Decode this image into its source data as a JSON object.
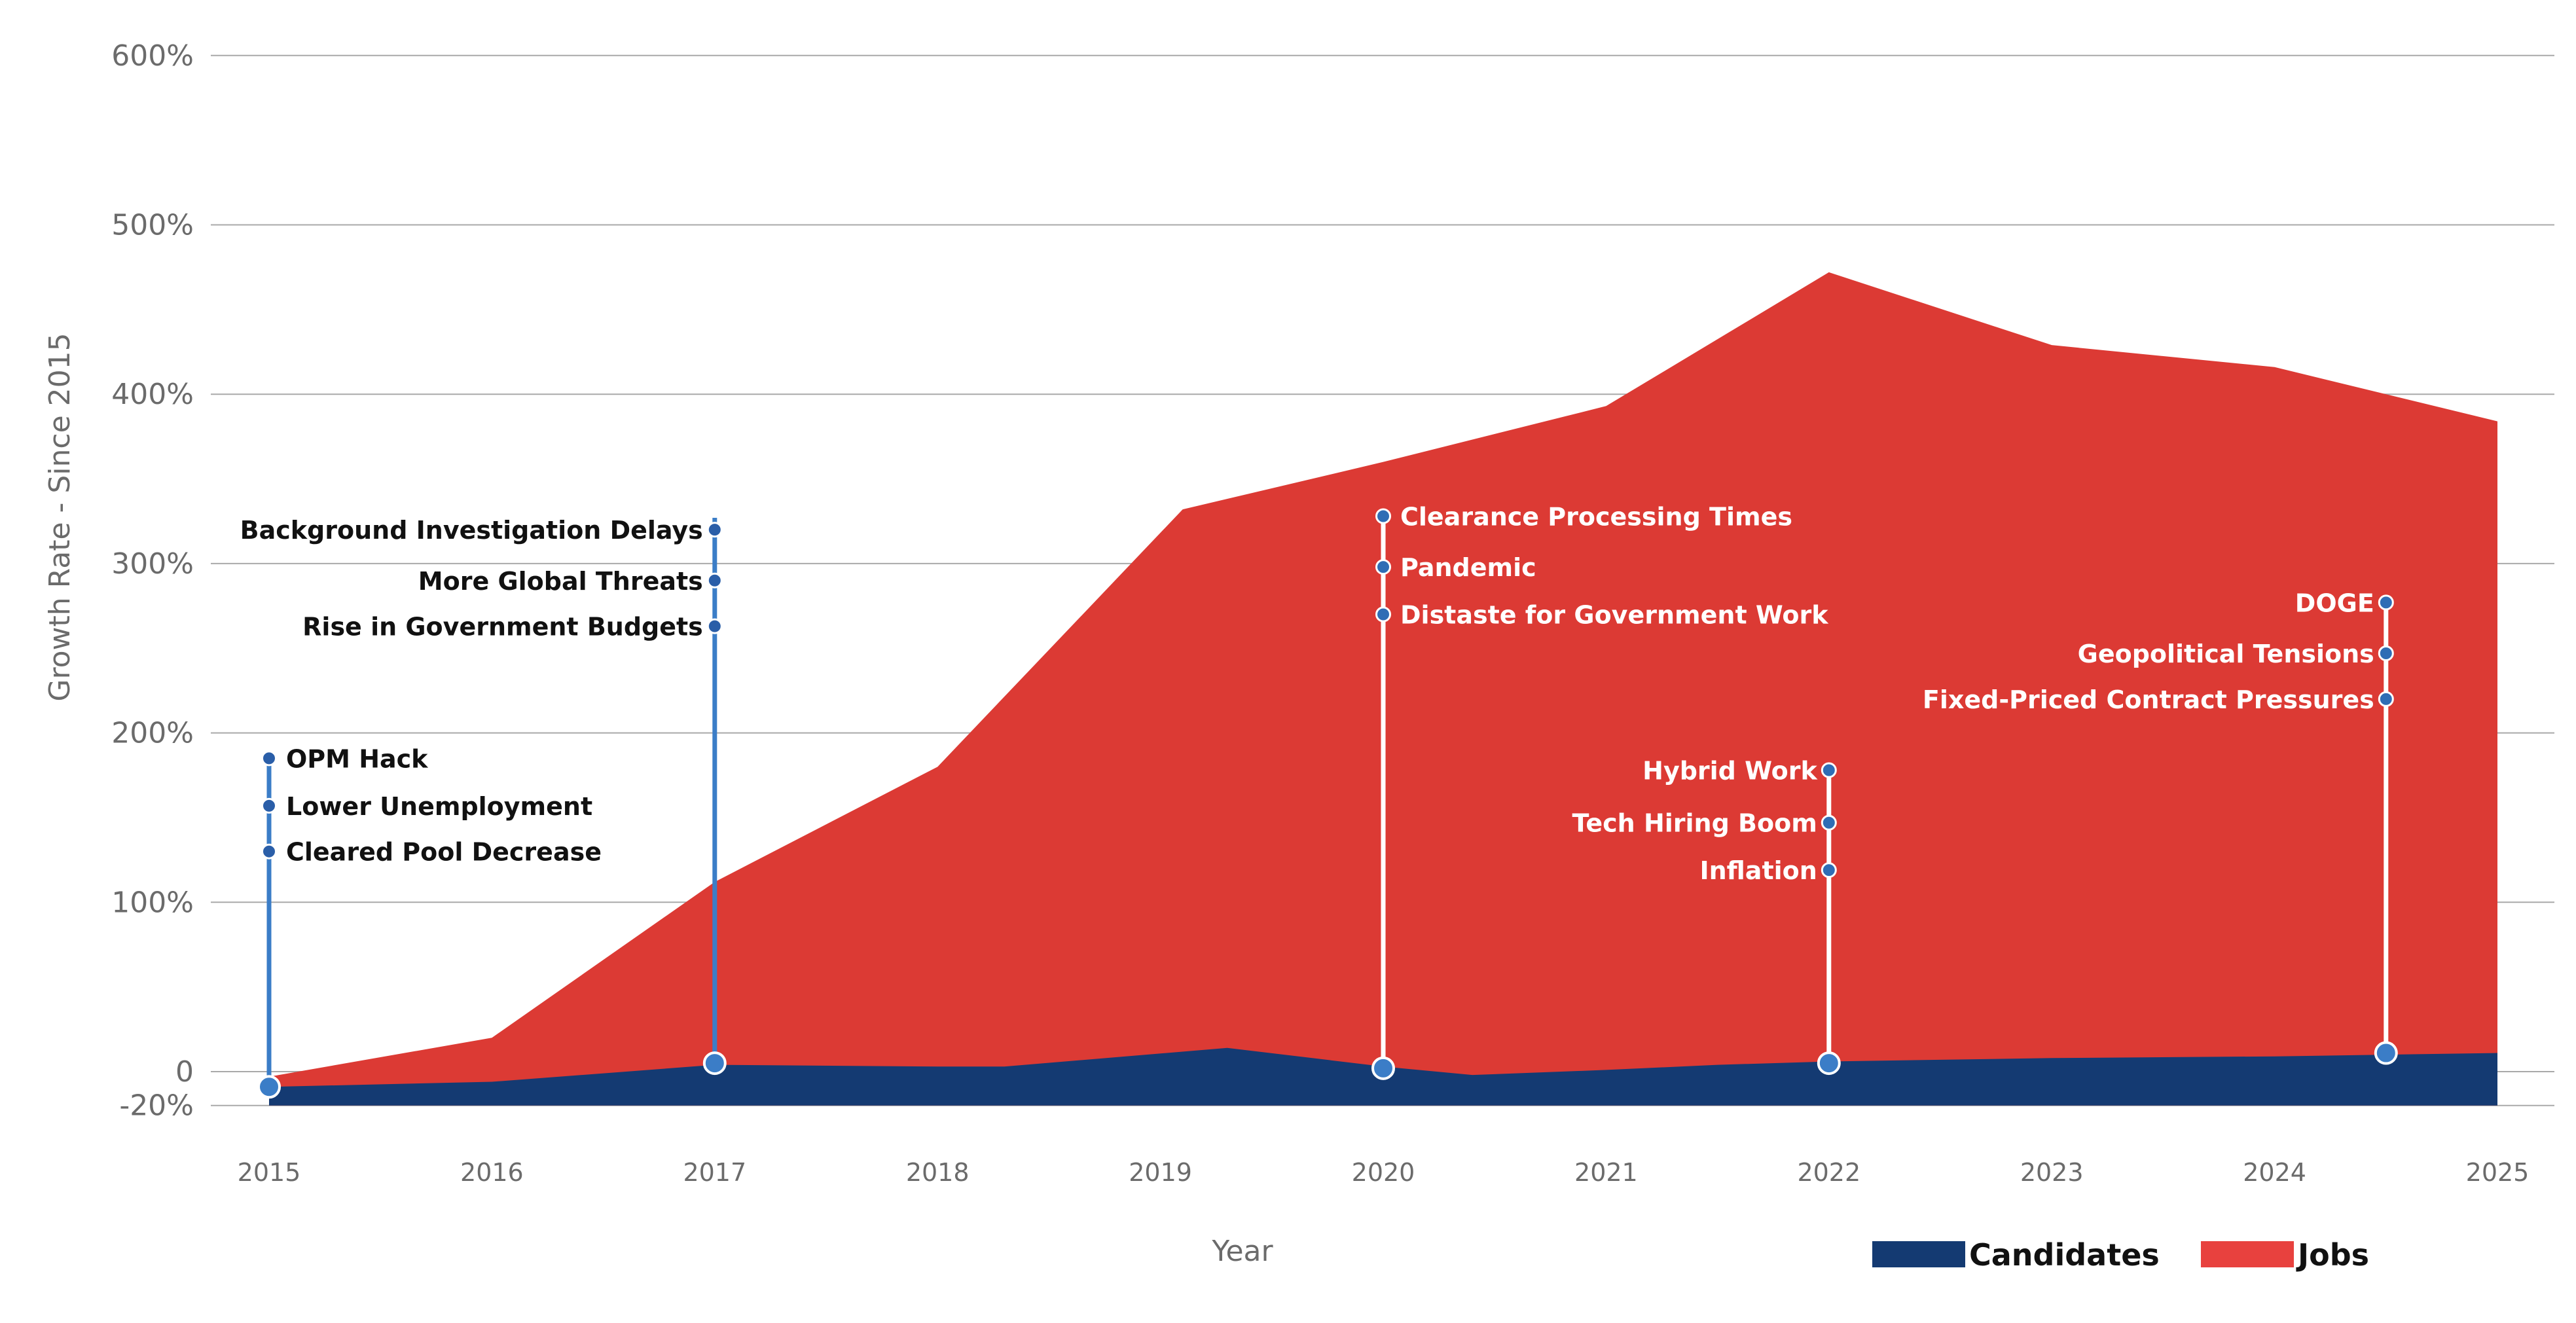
{
  "chart_data": {
    "type": "area",
    "title": "",
    "xlabel": "Year",
    "ylabel": "Growth Rate - Since 2015",
    "ylim": [
      -20,
      600
    ],
    "xlim": [
      2015,
      2025
    ],
    "x_ticks": [
      "2015",
      "2016",
      "2017",
      "2018",
      "2019",
      "2020",
      "2021",
      "2022",
      "2023",
      "2024",
      "2025"
    ],
    "y_ticks": [
      {
        "value": -20,
        "label": "-20%"
      },
      {
        "value": 0,
        "label": "0"
      },
      {
        "value": 100,
        "label": "100%"
      },
      {
        "value": 200,
        "label": "200%"
      },
      {
        "value": 300,
        "label": "300%"
      },
      {
        "value": 400,
        "label": "400%"
      },
      {
        "value": 500,
        "label": "500%"
      },
      {
        "value": 600,
        "label": "600%"
      }
    ],
    "grid": true,
    "legend_position": "bottom-right",
    "series": [
      {
        "name": "Jobs",
        "color": "#dc3a34",
        "legend_color": "#e8413e",
        "points": [
          {
            "x": 2015,
            "y": -3
          },
          {
            "x": 2016,
            "y": 20
          },
          {
            "x": 2017,
            "y": 112
          },
          {
            "x": 2018,
            "y": 180
          },
          {
            "x": 2019.1,
            "y": 332
          },
          {
            "x": 2020,
            "y": 360
          },
          {
            "x": 2021,
            "y": 393
          },
          {
            "x": 2022,
            "y": 472
          },
          {
            "x": 2023,
            "y": 429
          },
          {
            "x": 2024,
            "y": 416
          },
          {
            "x": 2025,
            "y": 384
          }
        ]
      },
      {
        "name": "Candidates",
        "color": "#143a72",
        "legend_color": "#143a72",
        "points": [
          {
            "x": 2015,
            "y": -9
          },
          {
            "x": 2016,
            "y": -6
          },
          {
            "x": 2017,
            "y": 4
          },
          {
            "x": 2018,
            "y": 3
          },
          {
            "x": 2018.3,
            "y": 3
          },
          {
            "x": 2019.3,
            "y": 14
          },
          {
            "x": 2020,
            "y": 3
          },
          {
            "x": 2020.4,
            "y": -2
          },
          {
            "x": 2021,
            "y": 1
          },
          {
            "x": 2021.5,
            "y": 4
          },
          {
            "x": 2022,
            "y": 6
          },
          {
            "x": 2023,
            "y": 8
          },
          {
            "x": 2024,
            "y": 9
          },
          {
            "x": 2025,
            "y": 11
          }
        ]
      }
    ],
    "annotations": [
      {
        "x": 2015,
        "base_y": -9,
        "top_y": 186,
        "side": "right",
        "line_color": "#3b7dc7",
        "items": [
          {
            "y": 185,
            "label": "OPM Hack"
          },
          {
            "y": 157,
            "label": "Lower Unemployment"
          },
          {
            "y": 130,
            "label": "Cleared Pool Decrease"
          }
        ]
      },
      {
        "x": 2017,
        "base_y": 5,
        "top_y": 327,
        "side": "left",
        "line_color": "#3b7dc7",
        "items": [
          {
            "y": 320,
            "label": "Background Investigation Delays"
          },
          {
            "y": 290,
            "label": "More Global Threats"
          },
          {
            "y": 263,
            "label": "Rise in Government Budgets"
          }
        ]
      },
      {
        "x": 2020,
        "base_y": 2,
        "top_y": 330,
        "side": "right",
        "line_color": "#ffffff",
        "items": [
          {
            "y": 328,
            "label": "Clearance Processing Times"
          },
          {
            "y": 298,
            "label": "Pandemic"
          },
          {
            "y": 270,
            "label": "Distaste for Government Work"
          }
        ]
      },
      {
        "x": 2022,
        "base_y": 5,
        "top_y": 179,
        "side": "left",
        "line_color": "#ffffff",
        "items": [
          {
            "y": 178,
            "label": "Hybrid Work"
          },
          {
            "y": 147,
            "label": "Tech Hiring Boom"
          },
          {
            "y": 119,
            "label": "Inflation"
          }
        ]
      },
      {
        "x": 2024.5,
        "base_y": 11,
        "top_y": 278,
        "side": "left",
        "line_color": "#ffffff",
        "items": [
          {
            "y": 277,
            "label": "DOGE"
          },
          {
            "y": 247,
            "label": "Geopolitical Tensions"
          },
          {
            "y": 220,
            "label": "Fixed-Priced Contract Pressures"
          }
        ]
      }
    ],
    "legend": [
      {
        "label": "Candidates",
        "color": "#143a72"
      },
      {
        "label": "Jobs",
        "color": "#e8413e"
      }
    ]
  }
}
